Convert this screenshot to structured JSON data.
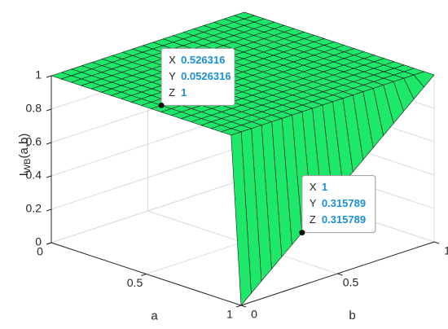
{
  "chart_data": {
    "type": "surface",
    "xlabel": "a",
    "ylabel": "b",
    "zlabel": {
      "main": "I",
      "sub": "WB",
      "rest": "(a,b)"
    },
    "color": "#1ee86a",
    "edge_color": "#1a1a1a",
    "grid": true,
    "xlim": [
      0,
      1
    ],
    "ylim": [
      0,
      1
    ],
    "zlim": [
      0,
      1
    ],
    "xticks": [
      0,
      0.5,
      1
    ],
    "yticks": [
      0,
      0.5,
      1
    ],
    "zticks": [
      0,
      0.2,
      0.4,
      0.6,
      0.8,
      1
    ],
    "x": [
      0,
      0.0526316,
      0.105263,
      0.157895,
      0.210526,
      0.263158,
      0.315789,
      0.368421,
      0.421053,
      0.473684,
      0.526316,
      0.578947,
      0.631579,
      0.684211,
      0.736842,
      0.789474,
      0.842105,
      0.894737,
      0.947368,
      1
    ],
    "y": [
      0,
      0.0526316,
      0.105263,
      0.157895,
      0.210526,
      0.263158,
      0.315789,
      0.368421,
      0.421053,
      0.473684,
      0.526316,
      0.578947,
      0.631579,
      0.684211,
      0.736842,
      0.789474,
      0.842105,
      0.894737,
      0.947368,
      1
    ],
    "z": [
      [
        1,
        1,
        1,
        1,
        1,
        1,
        1,
        1,
        1,
        1,
        1,
        1,
        1,
        1,
        1,
        1,
        1,
        1,
        1,
        1
      ],
      [
        1,
        1,
        1,
        1,
        1,
        1,
        1,
        1,
        1,
        1,
        1,
        1,
        1,
        1,
        1,
        1,
        1,
        1,
        1,
        1
      ],
      [
        1,
        1,
        1,
        1,
        1,
        1,
        1,
        1,
        1,
        1,
        1,
        1,
        1,
        1,
        1,
        1,
        1,
        1,
        1,
        1
      ],
      [
        1,
        1,
        1,
        1,
        1,
        1,
        1,
        1,
        1,
        1,
        1,
        1,
        1,
        1,
        1,
        1,
        1,
        1,
        1,
        1
      ],
      [
        1,
        1,
        1,
        1,
        1,
        1,
        1,
        1,
        1,
        1,
        1,
        1,
        1,
        1,
        1,
        1,
        1,
        1,
        1,
        1
      ],
      [
        1,
        1,
        1,
        1,
        1,
        1,
        1,
        1,
        1,
        1,
        1,
        1,
        1,
        1,
        1,
        1,
        1,
        1,
        1,
        1
      ],
      [
        1,
        1,
        1,
        1,
        1,
        1,
        1,
        1,
        1,
        1,
        1,
        1,
        1,
        1,
        1,
        1,
        1,
        1,
        1,
        1
      ],
      [
        1,
        1,
        1,
        1,
        1,
        1,
        1,
        1,
        1,
        1,
        1,
        1,
        1,
        1,
        1,
        1,
        1,
        1,
        1,
        1
      ],
      [
        1,
        1,
        1,
        1,
        1,
        1,
        1,
        1,
        1,
        1,
        1,
        1,
        1,
        1,
        1,
        1,
        1,
        1,
        1,
        1
      ],
      [
        1,
        1,
        1,
        1,
        1,
        1,
        1,
        1,
        1,
        1,
        1,
        1,
        1,
        1,
        1,
        1,
        1,
        1,
        1,
        1
      ],
      [
        1,
        1,
        1,
        1,
        1,
        1,
        1,
        1,
        1,
        1,
        1,
        1,
        1,
        1,
        1,
        1,
        1,
        1,
        1,
        1
      ],
      [
        1,
        1,
        1,
        1,
        1,
        1,
        1,
        1,
        1,
        1,
        1,
        1,
        1,
        1,
        1,
        1,
        1,
        1,
        1,
        1
      ],
      [
        1,
        1,
        1,
        1,
        1,
        1,
        1,
        1,
        1,
        1,
        1,
        1,
        1,
        1,
        1,
        1,
        1,
        1,
        1,
        1
      ],
      [
        1,
        1,
        1,
        1,
        1,
        1,
        1,
        1,
        1,
        1,
        1,
        1,
        1,
        1,
        1,
        1,
        1,
        1,
        1,
        1
      ],
      [
        1,
        1,
        1,
        1,
        1,
        1,
        1,
        1,
        1,
        1,
        1,
        1,
        1,
        1,
        1,
        1,
        1,
        1,
        1,
        1
      ],
      [
        1,
        1,
        1,
        1,
        1,
        1,
        1,
        1,
        1,
        1,
        1,
        1,
        1,
        1,
        1,
        1,
        1,
        1,
        1,
        1
      ],
      [
        1,
        1,
        1,
        1,
        1,
        1,
        1,
        1,
        1,
        1,
        1,
        1,
        1,
        1,
        1,
        1,
        1,
        1,
        1,
        1
      ],
      [
        1,
        1,
        1,
        1,
        1,
        1,
        1,
        1,
        1,
        1,
        1,
        1,
        1,
        1,
        1,
        1,
        1,
        1,
        1,
        1
      ],
      [
        1,
        1,
        1,
        1,
        1,
        1,
        1,
        1,
        1,
        1,
        1,
        1,
        1,
        1,
        1,
        1,
        1,
        1,
        1,
        1
      ],
      [
        0,
        0.0526316,
        0.105263,
        0.157895,
        0.210526,
        0.263158,
        0.315789,
        0.368421,
        0.421053,
        0.473684,
        0.526316,
        0.578947,
        0.631579,
        0.684211,
        0.736842,
        0.789474,
        0.842105,
        0.894737,
        0.947368,
        1
      ]
    ],
    "datatip_labels": [
      "X",
      "Y",
      "Z"
    ],
    "datatips": [
      {
        "x": 0.526316,
        "y": 0.0526316,
        "z": 1
      },
      {
        "x": 1,
        "y": 0.315789,
        "z": 0.315789
      }
    ]
  }
}
